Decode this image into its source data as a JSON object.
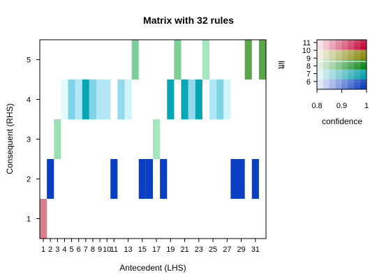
{
  "chart_data": {
    "type": "heatmap",
    "title": "Matrix with 32 rules",
    "xlabel": "Antecedent (LHS)",
    "ylabel": "Consequent (RHS)",
    "x_ticks": [
      "1",
      "2",
      "3",
      "4",
      "5",
      "6",
      "7",
      "8",
      "9",
      "10",
      "11",
      "13",
      "15",
      "17",
      "19",
      "21",
      "23",
      "25",
      "27",
      "29",
      "31"
    ],
    "y_ticks": [
      "1",
      "2",
      "3",
      "4",
      "5"
    ],
    "xlim": [
      0.5,
      32.5
    ],
    "ylim": [
      0.5,
      5.5
    ],
    "cells": [
      {
        "lhs": 1,
        "rhs": 1,
        "color": "#db7d8c"
      },
      {
        "lhs": 2,
        "rhs": 2,
        "color": "#0a3fc4"
      },
      {
        "lhs": 3,
        "rhs": 3,
        "color": "#9de0b3"
      },
      {
        "lhs": 4,
        "rhs": 4,
        "color": "#e2fbfb"
      },
      {
        "lhs": 5,
        "rhs": 4,
        "color": "#7fd3e6"
      },
      {
        "lhs": 6,
        "rhs": 4,
        "color": "#b0e6f5"
      },
      {
        "lhs": 7,
        "rhs": 4,
        "color": "#08a5b5"
      },
      {
        "lhs": 8,
        "rhs": 4,
        "color": "#7fd3e6"
      },
      {
        "lhs": 9,
        "rhs": 4,
        "color": "#b0e6f5"
      },
      {
        "lhs": 10,
        "rhs": 4,
        "color": "#b0e6f5"
      },
      {
        "lhs": 11,
        "rhs": 2,
        "color": "#0a3fc4"
      },
      {
        "lhs": 12,
        "rhs": 4,
        "color": "#94d8ec"
      },
      {
        "lhs": 13,
        "rhs": 4,
        "color": "#d0f4f8"
      },
      {
        "lhs": 14,
        "rhs": 5,
        "color": "#7ccf98"
      },
      {
        "lhs": 15,
        "rhs": 2,
        "color": "#0a3fc4"
      },
      {
        "lhs": 16,
        "rhs": 2,
        "color": "#0a3fc4"
      },
      {
        "lhs": 17,
        "rhs": 3,
        "color": "#a4e8c0"
      },
      {
        "lhs": 18,
        "rhs": 2,
        "color": "#0a3fc4"
      },
      {
        "lhs": 19,
        "rhs": 4,
        "color": "#08a5b5"
      },
      {
        "lhs": 20,
        "rhs": 5,
        "color": "#7ccf98"
      },
      {
        "lhs": 21,
        "rhs": 4,
        "color": "#08a5b5"
      },
      {
        "lhs": 22,
        "rhs": 4,
        "color": "#94d8ec"
      },
      {
        "lhs": 23,
        "rhs": 4,
        "color": "#08a5b5"
      },
      {
        "lhs": 24,
        "rhs": 5,
        "color": "#a4e8c0"
      },
      {
        "lhs": 25,
        "rhs": 4,
        "color": "#b0e6f5"
      },
      {
        "lhs": 26,
        "rhs": 4,
        "color": "#7fd3e6"
      },
      {
        "lhs": 27,
        "rhs": 4,
        "color": "#d0f4f8"
      },
      {
        "lhs": 28,
        "rhs": 2,
        "color": "#0a3fc4"
      },
      {
        "lhs": 29,
        "rhs": 2,
        "color": "#0a3fc4"
      },
      {
        "lhs": 30,
        "rhs": 5,
        "color": "#5aa74a"
      },
      {
        "lhs": 31,
        "rhs": 2,
        "color": "#0a3fc4"
      },
      {
        "lhs": 32,
        "rhs": 5,
        "color": "#5aa74a"
      }
    ],
    "color_key": {
      "x_label": "confidence",
      "y_label": "lift",
      "x_ticks": [
        "0.8",
        "0.9",
        "1"
      ],
      "y_ticks": [
        "11",
        "10",
        "9",
        "8",
        "7",
        "6"
      ],
      "hue_rows": [
        "#c40a3c",
        "#8a8a10",
        "#108a20",
        "#0aa0a8",
        "#1040c0"
      ]
    }
  }
}
